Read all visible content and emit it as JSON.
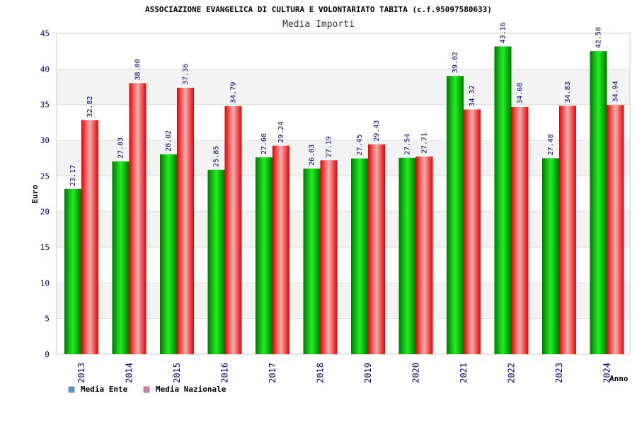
{
  "chart_data": {
    "type": "bar",
    "title": "ASSOCIAZIONE EVANGELICA DI CULTURA E VOLONTARIATO TABITA (c.f.95097580633)",
    "subtitle": "Media Importi",
    "xlabel": "Anno",
    "ylabel": "Euro",
    "ylim": [
      0,
      45
    ],
    "yticks": [
      "0",
      "5",
      "10",
      "15",
      "20",
      "25",
      "30",
      "35",
      "40",
      "45"
    ],
    "categories": [
      "2013",
      "2014",
      "2015",
      "2016",
      "2017",
      "2018",
      "2019",
      "2020",
      "2021",
      "2022",
      "2023",
      "2024"
    ],
    "series": [
      {
        "name": "Media Ente",
        "color": "#00aa00",
        "legend_color": "#5b9bd5",
        "values": [
          23.17,
          27.03,
          28.02,
          25.85,
          27.6,
          26.03,
          27.45,
          27.54,
          39.02,
          43.16,
          27.48,
          42.5
        ],
        "labels": [
          "23.17",
          "27.03",
          "28.02",
          "25.85",
          "27.60",
          "26.03",
          "27.45",
          "27.54",
          "39.02",
          "43.16",
          "27.48",
          "42.50"
        ]
      },
      {
        "name": "Media Nazionale",
        "color": "#ee0000",
        "legend_color": "#d87fb0",
        "values": [
          32.82,
          38.0,
          37.36,
          34.79,
          29.24,
          27.19,
          29.43,
          27.71,
          34.32,
          34.68,
          34.83,
          34.94
        ],
        "labels": [
          "32.82",
          "38.00",
          "37.36",
          "34.79",
          "29.24",
          "27.19",
          "29.43",
          "27.71",
          "34.32",
          "34.68",
          "34.83",
          "34.94"
        ]
      }
    ],
    "grid": true,
    "legend_position": "bottom-left"
  }
}
